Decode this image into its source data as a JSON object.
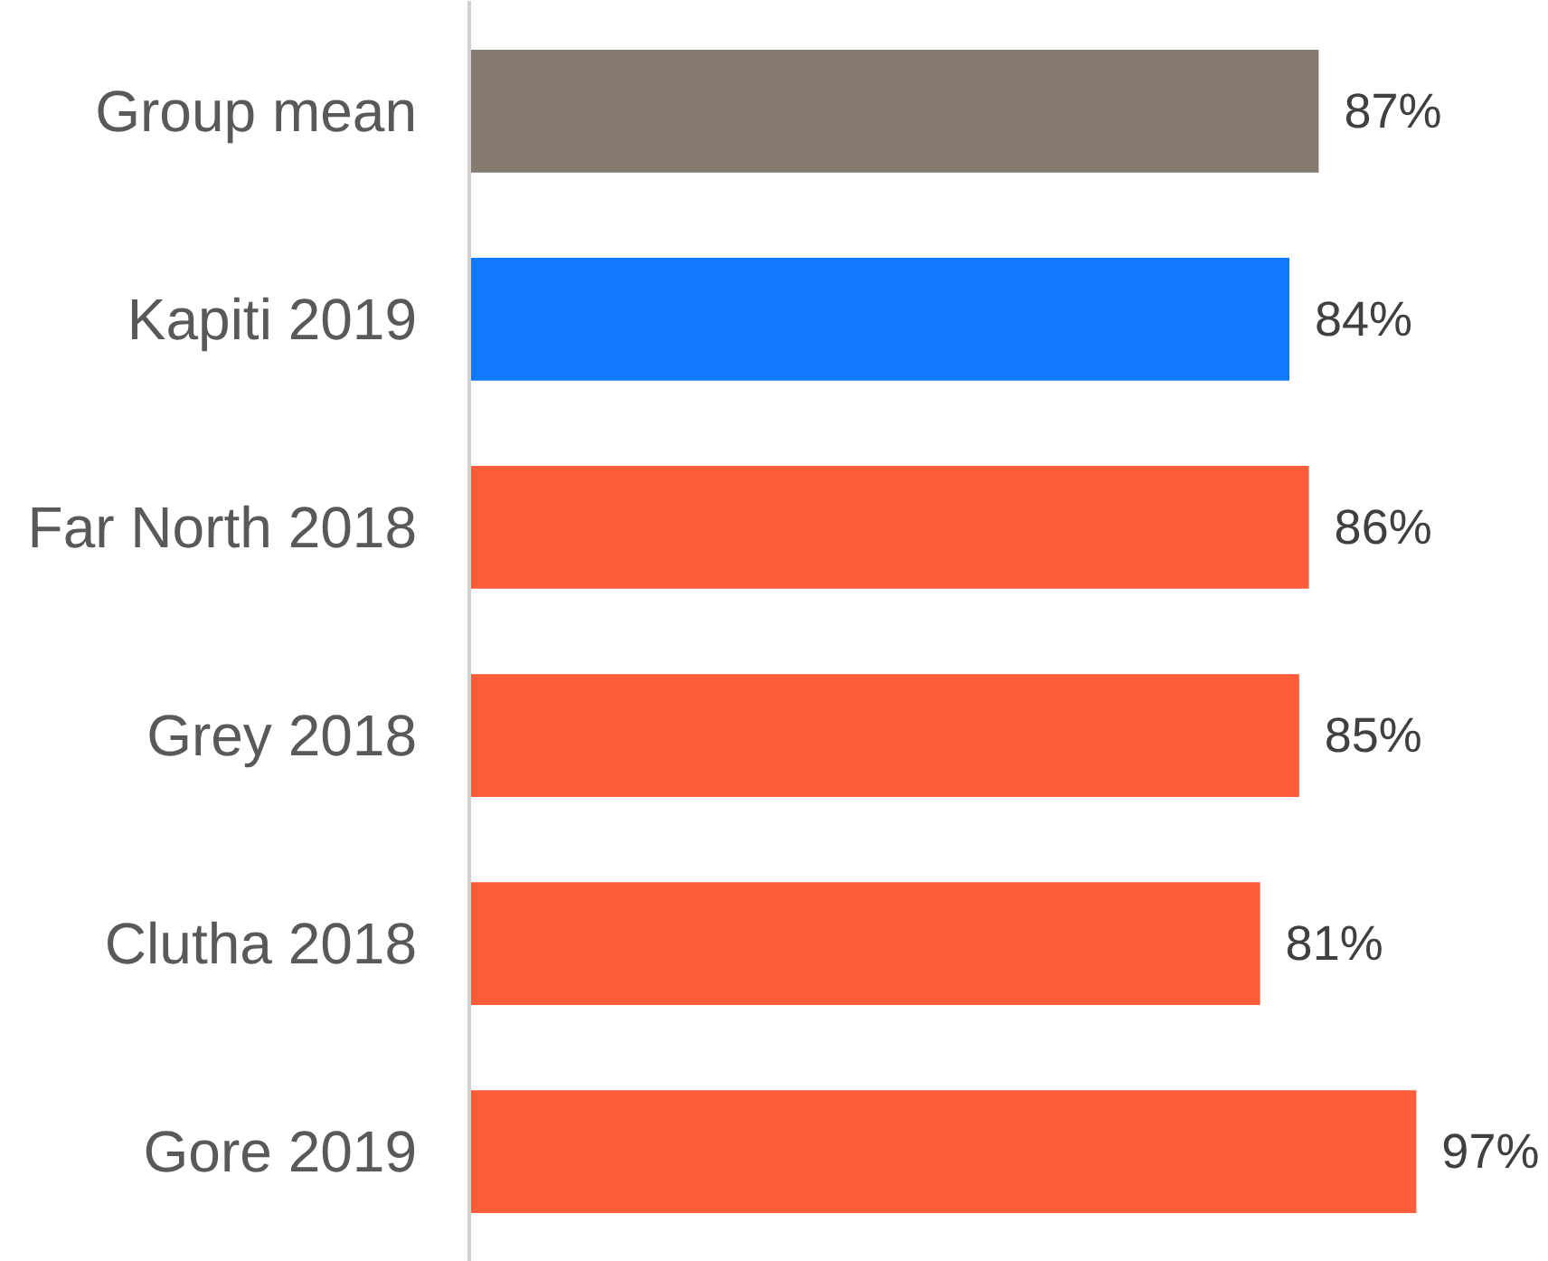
{
  "chart_data": {
    "type": "bar",
    "orientation": "horizontal",
    "categories": [
      "Group mean",
      "Kapiti 2019",
      "Far North 2018",
      "Grey 2018",
      "Clutha 2018",
      "Gore 2019"
    ],
    "values": [
      87,
      84,
      86,
      85,
      81,
      97
    ],
    "value_labels": [
      "87%",
      "84%",
      "86%",
      "85%",
      "81%",
      "97%"
    ],
    "colors": [
      "#847a70",
      "#0f78ff",
      "#ff5c39",
      "#ff5c39",
      "#ff5c39",
      "#ff5c39"
    ]
  }
}
